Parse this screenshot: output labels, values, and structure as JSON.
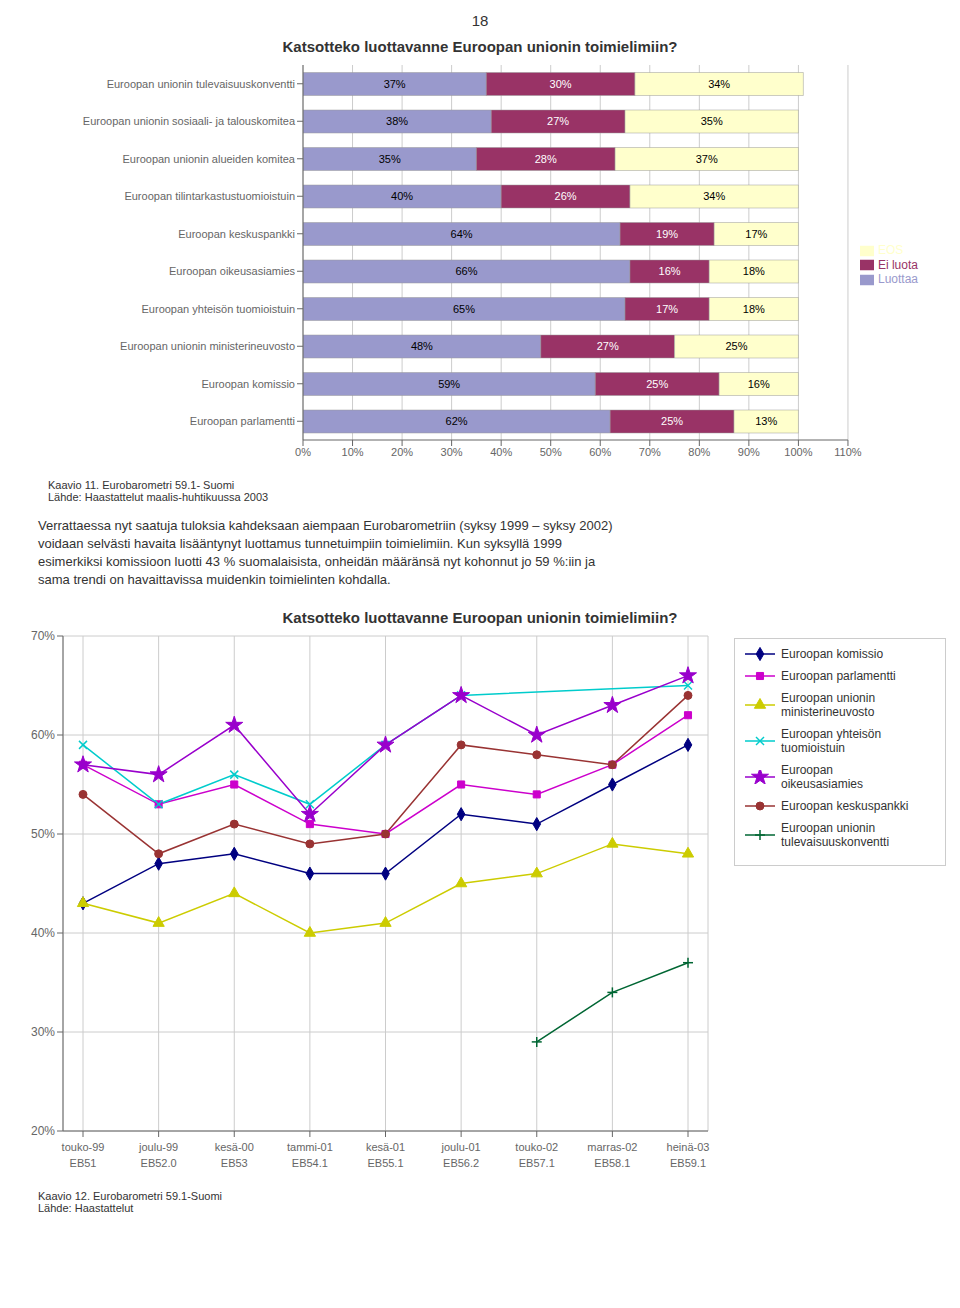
{
  "chart_data": [
    {
      "type": "bar",
      "title": "Katsotteko luottavanne Euroopan unionin toimielimiin?",
      "orientation": "horizontal",
      "stacked": true,
      "data_labels": true,
      "grid": true,
      "legend": "right",
      "categories": [
        "Euroopan unionin tulevaisuuskonventti",
        "Euroopan unionin sosiaali- ja talouskomitea",
        "Euroopan unionin alueiden komitea",
        "Euroopan tilintarkastustuomioistuin",
        "Euroopan keskuspankki",
        "Euroopan oikeusasiamies",
        "Euroopan yhteisön tuomioistuin",
        "Euroopan unionin ministerineuvosto",
        "Euroopan komissio",
        "Euroopan parlamentti"
      ],
      "series": [
        {
          "name": "Luottaa",
          "color": "#9999cc",
          "values": [
            37,
            38,
            35,
            40,
            64,
            66,
            65,
            48,
            59,
            62
          ],
          "value_labels": [
            "37%",
            "38%",
            "35%",
            "40%",
            "64%",
            "66%",
            "65%",
            "48%",
            "59%",
            "62%"
          ]
        },
        {
          "name": "Ei luota",
          "color": "#993366",
          "values": [
            30,
            27,
            28,
            26,
            19,
            16,
            17,
            27,
            25,
            25
          ],
          "value_labels": [
            "30%",
            "27%",
            "28%",
            "26%",
            "19%",
            "16%",
            "17%",
            "27%",
            "25%",
            "25%"
          ]
        },
        {
          "name": "EOS",
          "color": "#ffffcc",
          "values": [
            34,
            35,
            37,
            34,
            17,
            18,
            18,
            25,
            16,
            13
          ],
          "value_labels": [
            "34%",
            "35%",
            "37%",
            "34%",
            "17%",
            "18%",
            "18%",
            "25%",
            "16%",
            "13%"
          ]
        }
      ],
      "xlim": [
        0,
        110
      ],
      "xticks": [
        {
          "value": 0,
          "label": "0%"
        },
        {
          "value": 10,
          "label": "10%"
        },
        {
          "value": 20,
          "label": "20%"
        },
        {
          "value": 30,
          "label": "30%"
        },
        {
          "value": 40,
          "label": "40%"
        },
        {
          "value": 50,
          "label": "50%"
        },
        {
          "value": 60,
          "label": "60%"
        },
        {
          "value": 70,
          "label": "70%"
        },
        {
          "value": 80,
          "label": "80%"
        },
        {
          "value": 90,
          "label": "90%"
        },
        {
          "value": 100,
          "label": "100%"
        },
        {
          "value": 110,
          "label": "110%"
        }
      ],
      "annotations": [
        "18",
        "Kaavio 11. Eurobarometri 59.1- Suomi\nLähde: Haastattelut maalis-huhtikuussa 2003",
        "Verrattaessa nyt saatuja tuloksia kahdeksaan aiempaan Eurobarometriin (syksy 1999 – syksy 2002)\nvoidaan selvästi havaita lisääntynyt luottamus tunnetuimpiin toimielimiin. Kun syksyllä 1999\nesimerkiksi komissioon luotti 43 % suomalaisista, onheidän määränsä nyt kohonnut jo 59 %:iin ja\nsama trendi on havaittavissa muidenkin toimielinten kohdalla."
      ]
    },
    {
      "type": "line",
      "title": "Katsotteko luottavanne Euroopan unionin toimielimiin?",
      "grid": true,
      "legend": "right",
      "categories": [
        "touko-99\nEB51",
        "joulu-99\nEB52.0",
        "kesä-00\nEB53",
        "tammi-01\nEB54.1",
        "kesä-01\nEB55.1",
        "joulu-01\nEB56.2",
        "touko-02\nEB57.1",
        "marras-02\nEB58.1",
        "heinä-03\nEB59.1"
      ],
      "series": [
        {
          "name": "Euroopan komissio",
          "color": "#000080",
          "marker": "diamond",
          "values": [
            43,
            47,
            48,
            46,
            46,
            52,
            51,
            55,
            59
          ]
        },
        {
          "name": "Euroopan parlamentti",
          "color": "#cc00cc",
          "marker": "square",
          "values": [
            57,
            53,
            55,
            51,
            50,
            55,
            54,
            57,
            62
          ]
        },
        {
          "name": "Euroopan unionin\nministerineuvosto",
          "color": "#cccc00",
          "marker": "triangle",
          "values": [
            43,
            41,
            44,
            40,
            41,
            45,
            46,
            49,
            48
          ]
        },
        {
          "name": "Euroopan yhteisön\ntuomioistuin",
          "color": "#00cccc",
          "marker": "x",
          "values": [
            59,
            53,
            56,
            53,
            59,
            64,
            null,
            null,
            65
          ]
        },
        {
          "name": "Euroopan\noikeusasiamies",
          "color": "#9900cc",
          "marker": "star",
          "values": [
            57,
            56,
            61,
            52,
            59,
            64,
            60,
            63,
            66
          ]
        },
        {
          "name": "Euroopan keskuspankki",
          "color": "#993333",
          "marker": "circle",
          "values": [
            54,
            48,
            51,
            49,
            50,
            59,
            58,
            57,
            64
          ]
        },
        {
          "name": "Euroopan unionin\ntulevaisuuskonventti",
          "color": "#006633",
          "marker": "plus",
          "values": [
            null,
            null,
            null,
            null,
            null,
            null,
            29,
            34,
            37
          ]
        }
      ],
      "ylim": [
        20,
        70
      ],
      "yticks": [
        {
          "value": 20,
          "label": "20%"
        },
        {
          "value": 30,
          "label": "30%"
        },
        {
          "value": 40,
          "label": "40%"
        },
        {
          "value": 50,
          "label": "50%"
        },
        {
          "value": 60,
          "label": "60%"
        },
        {
          "value": 70,
          "label": "70%"
        }
      ],
      "annotations": [
        "Kaavio 12. Eurobarometri 59.1-Suomi\nLähde: Haastattelut"
      ]
    }
  ]
}
